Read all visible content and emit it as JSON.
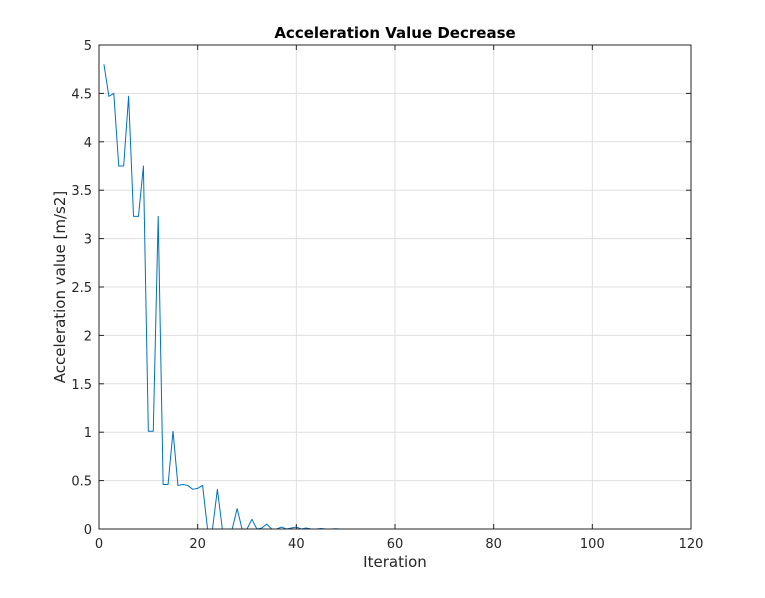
{
  "chart_data": {
    "type": "line",
    "title": "Acceleration Value Decrease",
    "xlabel": "Iteration",
    "ylabel": "Acceleration value [m/s2]",
    "xlim": [
      0,
      120
    ],
    "ylim": [
      0,
      5
    ],
    "xticks": [
      0,
      20,
      40,
      60,
      80,
      100,
      120
    ],
    "yticks": [
      0,
      0.5,
      1,
      1.5,
      2,
      2.5,
      3,
      3.5,
      4,
      4.5,
      5
    ],
    "xtick_labels": [
      "0",
      "20",
      "40",
      "60",
      "80",
      "100",
      "120"
    ],
    "ytick_labels": [
      "0",
      "0.5",
      "1",
      "1.5",
      "2",
      "2.5",
      "3",
      "3.5",
      "4",
      "4.5",
      "5"
    ],
    "grid": true,
    "series": [
      {
        "color": "#0072bd",
        "x": [
          1,
          2,
          3,
          4,
          5,
          6,
          7,
          8,
          9,
          10,
          11,
          12,
          13,
          14,
          15,
          16,
          17,
          18,
          19,
          20,
          21,
          22,
          23,
          24,
          25,
          26,
          27,
          28,
          29,
          30,
          31,
          32,
          33,
          34,
          35,
          36,
          37,
          38,
          39,
          40,
          41,
          42,
          43,
          44,
          45,
          46,
          47,
          48,
          49,
          50,
          55,
          60,
          65,
          70,
          80,
          90,
          100,
          110,
          115
        ],
        "y": [
          4.8,
          4.47,
          4.5,
          3.75,
          3.75,
          4.47,
          3.23,
          3.23,
          3.75,
          1.01,
          1.01,
          3.23,
          0.46,
          0.46,
          1.01,
          0.45,
          0.46,
          0.45,
          0.41,
          0.42,
          0.45,
          0.0,
          0.0,
          0.41,
          0.0,
          0.0,
          0.0,
          0.21,
          0.0,
          0.0,
          0.1,
          0.0,
          0.01,
          0.05,
          0.0,
          0.0,
          0.02,
          0.0,
          0.01,
          0.02,
          0.0,
          0.01,
          0.0,
          0.0,
          0.005,
          0.0,
          0.0,
          0.003,
          0.0,
          0.0,
          0.0,
          0.0,
          0.0,
          0.0,
          0.0,
          0.0,
          0.0,
          0.0,
          0.0
        ]
      }
    ]
  }
}
